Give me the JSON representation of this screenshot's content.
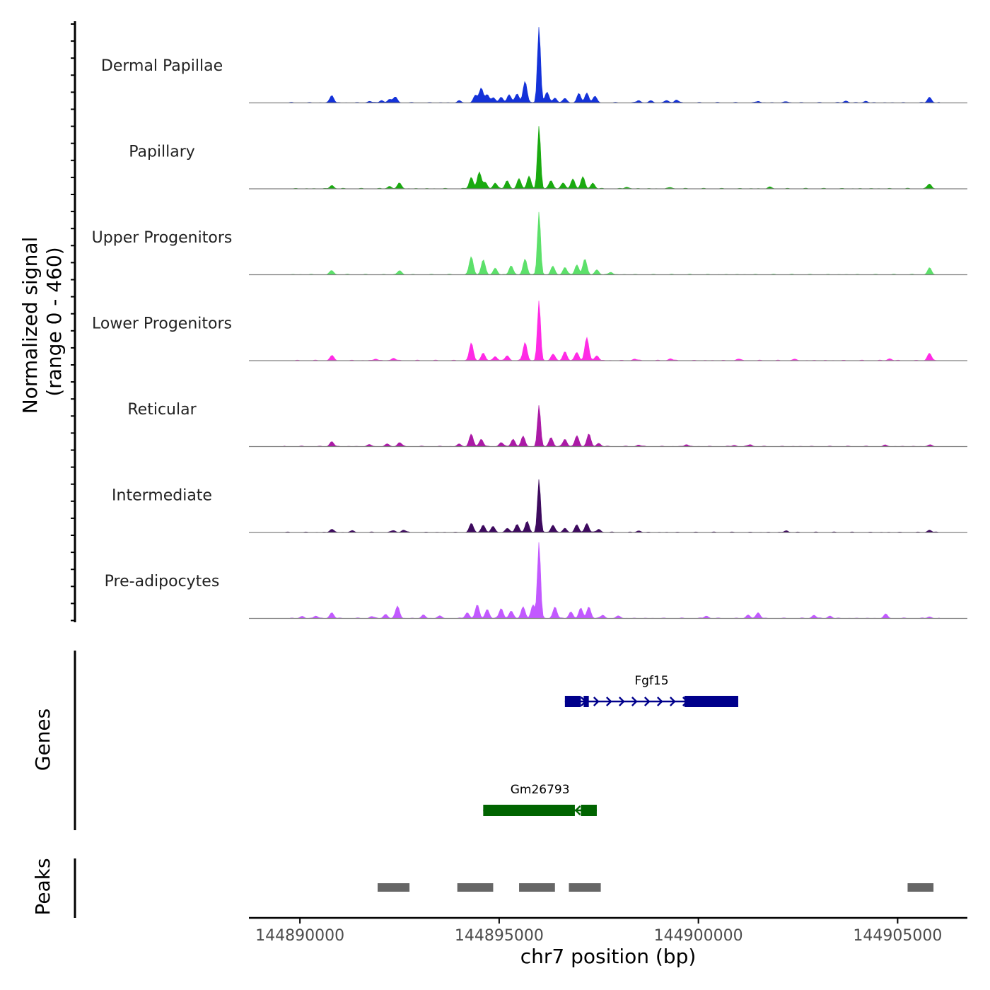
{
  "chart_data": {
    "type": "area",
    "y_axis_label_line1": "Normalized signal",
    "y_axis_label_line2": "(range 0 - 460)",
    "y_range": [
      0,
      460
    ],
    "x_axis_label": "chr7 position (bp)",
    "x_range": [
      144888720,
      144906750
    ],
    "x_ticks": [
      144890000,
      144895000,
      144900000,
      144905000
    ],
    "x_tick_labels": [
      "144890000",
      "144895000",
      "144900000",
      "144905000"
    ],
    "tracks": [
      {
        "name": "Dermal Papillae",
        "color": "#1432d9",
        "peaks": [
          [
            144890800,
            45
          ],
          [
            144891750,
            10
          ],
          [
            144892050,
            15
          ],
          [
            144892250,
            22
          ],
          [
            144892400,
            35
          ],
          [
            144894000,
            12
          ],
          [
            144894400,
            45
          ],
          [
            144894550,
            90
          ],
          [
            144894700,
            50
          ],
          [
            144894850,
            30
          ],
          [
            144895050,
            35
          ],
          [
            144895250,
            50
          ],
          [
            144895450,
            55
          ],
          [
            144895650,
            130
          ],
          [
            144896000,
            460
          ],
          [
            144896200,
            65
          ],
          [
            144896400,
            30
          ],
          [
            144896650,
            28
          ],
          [
            144897000,
            55
          ],
          [
            144897200,
            60
          ],
          [
            144897400,
            40
          ],
          [
            144898500,
            15
          ],
          [
            144898800,
            12
          ],
          [
            144899200,
            15
          ],
          [
            144899450,
            18
          ],
          [
            144901500,
            10
          ],
          [
            144902200,
            8
          ],
          [
            144903700,
            12
          ],
          [
            144904200,
            10
          ],
          [
            144905800,
            35
          ]
        ]
      },
      {
        "name": "Papillary",
        "color": "#1aaa10",
        "peaks": [
          [
            144890800,
            20
          ],
          [
            144892250,
            15
          ],
          [
            144892500,
            35
          ],
          [
            144894300,
            70
          ],
          [
            144894500,
            100
          ],
          [
            144894650,
            40
          ],
          [
            144894900,
            35
          ],
          [
            144895200,
            50
          ],
          [
            144895500,
            60
          ],
          [
            144895750,
            75
          ],
          [
            144896000,
            380
          ],
          [
            144896300,
            50
          ],
          [
            144896600,
            35
          ],
          [
            144896850,
            60
          ],
          [
            144897100,
            70
          ],
          [
            144897350,
            35
          ],
          [
            144898200,
            10
          ],
          [
            144899300,
            8
          ],
          [
            144901800,
            10
          ],
          [
            144905800,
            30
          ]
        ]
      },
      {
        "name": "Upper Progenitors",
        "color": "#5ce06a",
        "peaks": [
          [
            144890800,
            25
          ],
          [
            144892500,
            25
          ],
          [
            144894300,
            110
          ],
          [
            144894600,
            90
          ],
          [
            144894900,
            40
          ],
          [
            144895300,
            55
          ],
          [
            144895650,
            95
          ],
          [
            144896000,
            380
          ],
          [
            144896350,
            50
          ],
          [
            144896650,
            45
          ],
          [
            144896950,
            60
          ],
          [
            144897150,
            95
          ],
          [
            144897450,
            30
          ],
          [
            144897800,
            15
          ],
          [
            144905800,
            40
          ]
        ]
      },
      {
        "name": "Lower Progenitors",
        "color": "#ff2be5",
        "peaks": [
          [
            144890800,
            30
          ],
          [
            144891900,
            10
          ],
          [
            144892350,
            15
          ],
          [
            144894300,
            105
          ],
          [
            144894600,
            45
          ],
          [
            144894900,
            25
          ],
          [
            144895200,
            30
          ],
          [
            144895650,
            110
          ],
          [
            144896000,
            360
          ],
          [
            144896350,
            40
          ],
          [
            144896650,
            55
          ],
          [
            144896950,
            50
          ],
          [
            144897200,
            140
          ],
          [
            144897450,
            30
          ],
          [
            144898400,
            10
          ],
          [
            144899300,
            12
          ],
          [
            144901000,
            10
          ],
          [
            144902400,
            8
          ],
          [
            144904800,
            12
          ],
          [
            144905800,
            45
          ]
        ]
      },
      {
        "name": "Reticular",
        "color": "#ab1aa6",
        "peaks": [
          [
            144890800,
            30
          ],
          [
            144891750,
            12
          ],
          [
            144892200,
            15
          ],
          [
            144892500,
            25
          ],
          [
            144894000,
            15
          ],
          [
            144894300,
            75
          ],
          [
            144894550,
            45
          ],
          [
            144895050,
            25
          ],
          [
            144895350,
            45
          ],
          [
            144895600,
            60
          ],
          [
            144896000,
            250
          ],
          [
            144896300,
            55
          ],
          [
            144896650,
            45
          ],
          [
            144896950,
            65
          ],
          [
            144897250,
            75
          ],
          [
            144897500,
            20
          ],
          [
            144898500,
            10
          ],
          [
            144899700,
            12
          ],
          [
            144900900,
            8
          ],
          [
            144901300,
            12
          ],
          [
            144904700,
            8
          ],
          [
            144905800,
            10
          ]
        ]
      },
      {
        "name": "Intermediate",
        "color": "#3d0a5e",
        "peaks": [
          [
            144890800,
            20
          ],
          [
            144891300,
            10
          ],
          [
            144892350,
            12
          ],
          [
            144892600,
            15
          ],
          [
            144894300,
            55
          ],
          [
            144894600,
            45
          ],
          [
            144894850,
            35
          ],
          [
            144895200,
            25
          ],
          [
            144895450,
            50
          ],
          [
            144895700,
            65
          ],
          [
            144896000,
            320
          ],
          [
            144896350,
            45
          ],
          [
            144896650,
            25
          ],
          [
            144896950,
            45
          ],
          [
            144897200,
            55
          ],
          [
            144897500,
            20
          ],
          [
            144898500,
            10
          ],
          [
            144902200,
            10
          ],
          [
            144905800,
            15
          ]
        ]
      },
      {
        "name": "Pre-adipocytes",
        "color": "#c259ff",
        "peaks": [
          [
            144890050,
            12
          ],
          [
            144890400,
            15
          ],
          [
            144890800,
            35
          ],
          [
            144891800,
            12
          ],
          [
            144892150,
            25
          ],
          [
            144892450,
            75
          ],
          [
            144893100,
            20
          ],
          [
            144893500,
            15
          ],
          [
            144894200,
            35
          ],
          [
            144894450,
            80
          ],
          [
            144894700,
            55
          ],
          [
            144895050,
            60
          ],
          [
            144895300,
            45
          ],
          [
            144895600,
            70
          ],
          [
            144895850,
            80
          ],
          [
            144896000,
            460
          ],
          [
            144896400,
            70
          ],
          [
            144896800,
            40
          ],
          [
            144897050,
            60
          ],
          [
            144897250,
            70
          ],
          [
            144897600,
            20
          ],
          [
            144898000,
            15
          ],
          [
            144900200,
            15
          ],
          [
            144901250,
            20
          ],
          [
            144901500,
            35
          ],
          [
            144902900,
            20
          ],
          [
            144903300,
            15
          ],
          [
            144904700,
            25
          ],
          [
            144905800,
            10
          ]
        ]
      }
    ],
    "gene_panel_label": "Genes",
    "genes": [
      {
        "name": "Fgf15",
        "strand": "+",
        "color": "#00008b",
        "start": 144896650,
        "end": 144901000,
        "exons": [
          [
            144896650,
            144897050
          ],
          [
            144897120,
            144897250
          ],
          [
            144899650,
            144901000
          ]
        ]
      },
      {
        "name": "Gm26793",
        "strand": "-",
        "color": "#006400",
        "start": 144894600,
        "end": 144897450,
        "exons": [
          [
            144894600,
            144896900
          ],
          [
            144897050,
            144897450
          ]
        ]
      }
    ],
    "peak_panel_label": "Peaks",
    "peak_color": "#666666",
    "peak_regions": [
      [
        144891950,
        144892750
      ],
      [
        144893950,
        144894850
      ],
      [
        144895500,
        144896400
      ],
      [
        144896750,
        144897550
      ],
      [
        144905250,
        144905900
      ]
    ]
  }
}
